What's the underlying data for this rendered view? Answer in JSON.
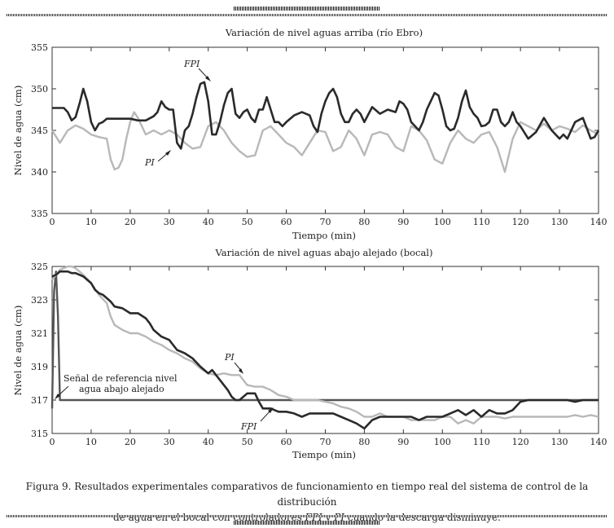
{
  "chart_data": [
    {
      "type": "line",
      "title": "Variación de nivel aguas arriba (río Ebro)",
      "xlabel": "Tiempo (min)",
      "ylabel": "Nivel de agua (cm)",
      "xlim": [
        0,
        140
      ],
      "ylim": [
        335,
        355
      ],
      "xticks": [
        "0",
        "10",
        "20",
        "30",
        "40",
        "50",
        "60",
        "70",
        "80",
        "90",
        "100",
        "110",
        "120",
        "130",
        "140"
      ],
      "yticks": [
        "335",
        "340",
        "345",
        "350",
        "355"
      ],
      "annotations": [
        {
          "text": "FPI"
        },
        {
          "text": "PI"
        }
      ],
      "series": [
        {
          "name": "FPI",
          "x": [
            0,
            3,
            4,
            5,
            6,
            7,
            8,
            9,
            10,
            11,
            12,
            13,
            14,
            16,
            18,
            20,
            22,
            24,
            26,
            27,
            28,
            29,
            30,
            31,
            32,
            33,
            34,
            35,
            36,
            37,
            38,
            39,
            40,
            41,
            42,
            43,
            44,
            45,
            46,
            47,
            48,
            49,
            50,
            51,
            52,
            53,
            54,
            55,
            56,
            57,
            58,
            59,
            60,
            62,
            64,
            66,
            67,
            68,
            69,
            70,
            71,
            72,
            73,
            74,
            75,
            76,
            77,
            78,
            79,
            80,
            82,
            84,
            86,
            88,
            89,
            90,
            91,
            92,
            93,
            94,
            95,
            96,
            97,
            98,
            99,
            100,
            101,
            102,
            103,
            104,
            105,
            106,
            107,
            108,
            109,
            110,
            111,
            112,
            113,
            114,
            115,
            116,
            117,
            118,
            119,
            120,
            122,
            124,
            126,
            128,
            130,
            131,
            132,
            134,
            136,
            138,
            139,
            140
          ],
          "y": [
            347.7,
            347.7,
            347.2,
            346.2,
            346.6,
            348.2,
            350.0,
            348.5,
            346.0,
            345.0,
            345.8,
            346.0,
            346.4,
            346.4,
            346.4,
            346.4,
            346.2,
            346.2,
            346.7,
            347.2,
            348.5,
            347.8,
            347.5,
            347.5,
            343.5,
            342.8,
            345.0,
            345.5,
            347.0,
            349.0,
            350.6,
            350.8,
            348.5,
            344.5,
            344.5,
            346.0,
            348.0,
            349.5,
            350.0,
            347.0,
            346.5,
            347.2,
            347.5,
            346.5,
            346.0,
            347.5,
            347.5,
            349.0,
            347.5,
            346.0,
            346.0,
            345.5,
            346.0,
            346.8,
            347.2,
            346.8,
            345.5,
            344.8,
            347.0,
            348.5,
            349.5,
            350.0,
            349.0,
            347.0,
            346.0,
            346.0,
            347.0,
            347.5,
            347.0,
            346.0,
            347.8,
            347.0,
            347.5,
            347.2,
            348.5,
            348.2,
            347.5,
            346.0,
            345.5,
            345.0,
            346.0,
            347.5,
            348.5,
            349.5,
            349.2,
            347.5,
            345.5,
            345.0,
            345.2,
            346.5,
            348.5,
            349.8,
            347.8,
            347.0,
            346.5,
            345.5,
            345.6,
            346.0,
            347.5,
            347.5,
            346.0,
            345.5,
            346.0,
            347.2,
            346.0,
            345.5,
            344.0,
            344.8,
            346.5,
            345.0,
            344.0,
            344.5,
            344.0,
            346.0,
            346.5,
            344.0,
            344.2,
            345.0
          ]
        },
        {
          "name": "PI",
          "x": [
            0,
            2,
            4,
            6,
            8,
            10,
            12,
            14,
            15,
            16,
            17,
            18,
            19,
            20,
            21,
            22,
            24,
            26,
            28,
            30,
            32,
            34,
            36,
            38,
            40,
            42,
            44,
            46,
            48,
            50,
            52,
            54,
            56,
            58,
            60,
            62,
            64,
            66,
            68,
            70,
            72,
            74,
            76,
            78,
            80,
            82,
            84,
            86,
            88,
            90,
            92,
            94,
            96,
            98,
            100,
            102,
            104,
            106,
            108,
            110,
            112,
            114,
            115,
            116,
            118,
            120,
            122,
            124,
            126,
            128,
            130,
            132,
            134,
            136,
            138,
            140
          ],
          "y": [
            345.0,
            343.5,
            345.0,
            345.6,
            345.2,
            344.5,
            344.2,
            344.0,
            341.5,
            340.3,
            340.5,
            341.5,
            344.0,
            346.0,
            347.2,
            346.5,
            344.5,
            345.0,
            344.5,
            345.0,
            344.5,
            343.5,
            342.8,
            343.0,
            345.5,
            346.0,
            345.0,
            343.5,
            342.5,
            341.8,
            342.0,
            345.0,
            345.5,
            344.5,
            343.5,
            343.0,
            342.0,
            343.5,
            345.0,
            344.8,
            342.5,
            343.0,
            345.0,
            344.0,
            342.0,
            344.5,
            344.8,
            344.5,
            343.0,
            342.5,
            345.5,
            345.0,
            343.8,
            341.5,
            341.0,
            343.5,
            345.0,
            344.0,
            343.5,
            344.5,
            344.8,
            343.0,
            341.5,
            340.0,
            344.0,
            346.0,
            345.5,
            345.0,
            345.8,
            345.0,
            345.5,
            345.2,
            344.8,
            345.6,
            345.0,
            344.5
          ]
        }
      ]
    },
    {
      "type": "line",
      "title": "Variación de nivel aguas abajo alejado (bocal)",
      "xlabel": "Tiempo (min)",
      "ylabel": "Nivel de agua (cm)",
      "xlim": [
        0,
        140
      ],
      "ylim": [
        315,
        325
      ],
      "xticks": [
        "0",
        "10",
        "20",
        "30",
        "40",
        "50",
        "60",
        "70",
        "80",
        "90",
        "100",
        "110",
        "120",
        "130",
        "140"
      ],
      "yticks": [
        "315",
        "317",
        "319",
        "321",
        "323",
        "325"
      ],
      "annotations": [
        {
          "text": "Señal de referencia nivel"
        },
        {
          "text": "agua abajo alejado"
        },
        {
          "text": "PI"
        },
        {
          "text": "FPI"
        }
      ],
      "series": [
        {
          "name": "FPI",
          "x": [
            0,
            1,
            2,
            3,
            4,
            5,
            6,
            8,
            10,
            11,
            12,
            13,
            14,
            15,
            16,
            18,
            20,
            22,
            24,
            25,
            26,
            28,
            30,
            32,
            34,
            36,
            38,
            40,
            41,
            42,
            43,
            44,
            45,
            46,
            47,
            48,
            50,
            52,
            53,
            54,
            56,
            58,
            60,
            62,
            64,
            66,
            68,
            70,
            72,
            74,
            76,
            78,
            80,
            82,
            84,
            86,
            88,
            90,
            92,
            94,
            96,
            98,
            100,
            102,
            104,
            106,
            108,
            110,
            112,
            114,
            116,
            118,
            120,
            122,
            124,
            126,
            128,
            130,
            132,
            134,
            136,
            138,
            140
          ],
          "y": [
            324.4,
            324.5,
            324.7,
            324.7,
            324.7,
            324.6,
            324.6,
            324.4,
            324.0,
            323.6,
            323.4,
            323.3,
            323.1,
            322.9,
            322.6,
            322.5,
            322.2,
            322.2,
            321.9,
            321.6,
            321.2,
            320.8,
            320.6,
            320.0,
            319.8,
            319.5,
            319.0,
            318.6,
            318.8,
            318.5,
            318.2,
            317.9,
            317.6,
            317.2,
            317.0,
            317.0,
            317.4,
            317.4,
            316.9,
            316.5,
            316.5,
            316.3,
            316.3,
            316.2,
            316.0,
            316.2,
            316.2,
            316.2,
            316.2,
            316.0,
            315.8,
            315.6,
            315.3,
            315.8,
            316.0,
            316.0,
            316.0,
            316.0,
            316.0,
            315.8,
            316.0,
            316.0,
            316.0,
            316.2,
            316.4,
            316.1,
            316.4,
            316.0,
            316.4,
            316.2,
            316.2,
            316.4,
            316.9,
            317.0,
            317.0,
            317.0,
            317.0,
            317.0,
            317.0,
            316.9,
            317.0,
            317.0,
            317.0
          ]
        },
        {
          "name": "PI",
          "x": [
            0,
            1,
            2,
            4,
            5,
            6,
            8,
            10,
            12,
            14,
            15,
            16,
            18,
            20,
            22,
            24,
            26,
            28,
            30,
            32,
            34,
            36,
            38,
            40,
            42,
            44,
            46,
            48,
            50,
            52,
            54,
            56,
            58,
            60,
            62,
            64,
            66,
            68,
            70,
            72,
            74,
            76,
            78,
            80,
            82,
            84,
            86,
            88,
            90,
            92,
            94,
            96,
            98,
            100,
            102,
            104,
            106,
            108,
            110,
            112,
            114,
            116,
            118,
            120,
            122,
            124,
            126,
            128,
            130,
            132,
            134,
            136,
            138,
            140
          ],
          "y": [
            324.2,
            324.5,
            324.8,
            325.0,
            325.0,
            324.9,
            324.5,
            324.0,
            323.3,
            322.8,
            322.0,
            321.5,
            321.2,
            321.0,
            321.0,
            320.8,
            320.5,
            320.3,
            320.0,
            319.8,
            319.5,
            319.3,
            318.9,
            318.6,
            318.5,
            318.6,
            318.5,
            318.5,
            317.9,
            317.8,
            317.8,
            317.6,
            317.3,
            317.2,
            317.0,
            317.0,
            317.0,
            317.0,
            316.9,
            316.8,
            316.6,
            316.5,
            316.3,
            316.0,
            316.0,
            316.2,
            316.0,
            316.0,
            316.0,
            315.8,
            315.8,
            315.8,
            315.8,
            316.0,
            316.0,
            315.6,
            315.8,
            315.6,
            316.0,
            316.0,
            316.0,
            315.9,
            316.0,
            316.0,
            316.0,
            316.0,
            316.0,
            316.0,
            316.0,
            316.0,
            316.1,
            316.0,
            316.1,
            316.0
          ]
        },
        {
          "name": "Señal de referencia",
          "x": [
            0,
            0.5,
            1,
            1.5,
            2,
            140
          ],
          "y": [
            316.5,
            323.5,
            324.7,
            322.0,
            317.0,
            317.0
          ]
        }
      ]
    }
  ],
  "caption": {
    "part1": "Figura 9. Resultados experimentales comparativos de funcionamiento en tiempo real del sistema de control de la distribución",
    "part2": "de agua en el bocal con controladores ",
    "fpi": "FPI",
    "part3": " y ",
    "pi": "PI",
    "part4": " cuando la descarga disminuye."
  }
}
